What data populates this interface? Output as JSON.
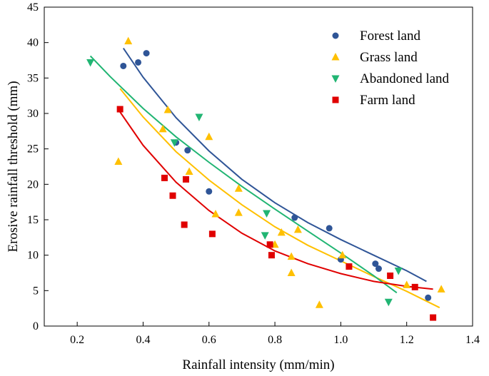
{
  "chart_data": {
    "type": "scatter",
    "title": "",
    "xlabel": "Rainfall intensity (mm/min)",
    "ylabel": "Erosive rainfall threshold (mm)",
    "xlim": [
      0.1,
      1.4
    ],
    "ylim": [
      0,
      45
    ],
    "xticks": [
      "0.2",
      "0.4",
      "0.6",
      "0.8",
      "1.0",
      "1.2",
      "1.4"
    ],
    "yticks": [
      "0",
      "5",
      "10",
      "15",
      "20",
      "25",
      "30",
      "35",
      "40",
      "45"
    ],
    "grid": false,
    "legend_position": "top-right",
    "series": [
      {
        "name": "Forest land",
        "marker": "circle",
        "color": "#2F5597",
        "points": [
          [
            0.34,
            36.7
          ],
          [
            0.385,
            37.2
          ],
          [
            0.41,
            38.5
          ],
          [
            0.5,
            25.9
          ],
          [
            0.535,
            24.8
          ],
          [
            0.6,
            19.0
          ],
          [
            0.86,
            15.3
          ],
          [
            0.965,
            13.8
          ],
          [
            1.0,
            9.4
          ],
          [
            1.105,
            8.8
          ],
          [
            1.115,
            8.1
          ],
          [
            1.265,
            4.0
          ]
        ],
        "fit": [
          [
            0.34,
            39.2
          ],
          [
            0.4,
            35.1
          ],
          [
            0.5,
            29.4
          ],
          [
            0.6,
            24.7
          ],
          [
            0.7,
            20.7
          ],
          [
            0.8,
            17.4
          ],
          [
            0.9,
            14.6
          ],
          [
            1.0,
            12.2
          ],
          [
            1.1,
            10.0
          ],
          [
            1.2,
            7.8
          ],
          [
            1.26,
            6.3
          ]
        ]
      },
      {
        "name": "Grass land",
        "marker": "triangle-up",
        "color": "#FFC000",
        "points": [
          [
            0.325,
            23.2
          ],
          [
            0.355,
            40.2
          ],
          [
            0.46,
            27.8
          ],
          [
            0.475,
            30.5
          ],
          [
            0.54,
            21.8
          ],
          [
            0.6,
            26.7
          ],
          [
            0.62,
            15.8
          ],
          [
            0.69,
            16.0
          ],
          [
            0.69,
            19.4
          ],
          [
            0.8,
            11.5
          ],
          [
            0.82,
            13.2
          ],
          [
            0.85,
            9.8
          ],
          [
            0.85,
            7.5
          ],
          [
            0.87,
            13.6
          ],
          [
            0.935,
            3.0
          ],
          [
            1.005,
            10.0
          ],
          [
            1.2,
            5.8
          ],
          [
            1.305,
            5.2
          ]
        ],
        "fit": [
          [
            0.33,
            33.5
          ],
          [
            0.4,
            29.5
          ],
          [
            0.5,
            24.6
          ],
          [
            0.6,
            20.6
          ],
          [
            0.7,
            17.1
          ],
          [
            0.8,
            14.0
          ],
          [
            0.9,
            11.4
          ],
          [
            1.0,
            9.2
          ],
          [
            1.1,
            7.0
          ],
          [
            1.2,
            4.9
          ],
          [
            1.3,
            2.6
          ]
        ]
      },
      {
        "name": "Abandoned land",
        "marker": "triangle-down",
        "color": "#21B573",
        "points": [
          [
            0.24,
            37.2
          ],
          [
            0.495,
            25.9
          ],
          [
            0.57,
            29.5
          ],
          [
            0.77,
            12.8
          ],
          [
            0.775,
            15.9
          ],
          [
            1.145,
            3.4
          ],
          [
            1.175,
            7.8
          ]
        ],
        "fit": [
          [
            0.24,
            38.1
          ],
          [
            0.3,
            35.2
          ],
          [
            0.4,
            30.7
          ],
          [
            0.5,
            26.7
          ],
          [
            0.6,
            23.1
          ],
          [
            0.7,
            19.7
          ],
          [
            0.8,
            16.5
          ],
          [
            0.9,
            13.4
          ],
          [
            1.0,
            10.3
          ],
          [
            1.1,
            7.1
          ],
          [
            1.17,
            4.7
          ]
        ]
      },
      {
        "name": "Farm land",
        "marker": "square",
        "color": "#E00000",
        "points": [
          [
            0.33,
            30.6
          ],
          [
            0.465,
            20.9
          ],
          [
            0.49,
            18.4
          ],
          [
            0.525,
            14.3
          ],
          [
            0.53,
            20.7
          ],
          [
            0.61,
            13.0
          ],
          [
            0.785,
            11.5
          ],
          [
            0.79,
            10.0
          ],
          [
            1.025,
            8.4
          ],
          [
            1.15,
            7.1
          ],
          [
            1.225,
            5.5
          ],
          [
            1.28,
            1.2
          ]
        ],
        "fit": [
          [
            0.33,
            30.2
          ],
          [
            0.4,
            25.5
          ],
          [
            0.5,
            20.3
          ],
          [
            0.6,
            16.3
          ],
          [
            0.7,
            13.1
          ],
          [
            0.8,
            10.6
          ],
          [
            0.9,
            8.8
          ],
          [
            1.0,
            7.4
          ],
          [
            1.1,
            6.3
          ],
          [
            1.2,
            5.6
          ],
          [
            1.28,
            5.2
          ]
        ]
      }
    ]
  }
}
